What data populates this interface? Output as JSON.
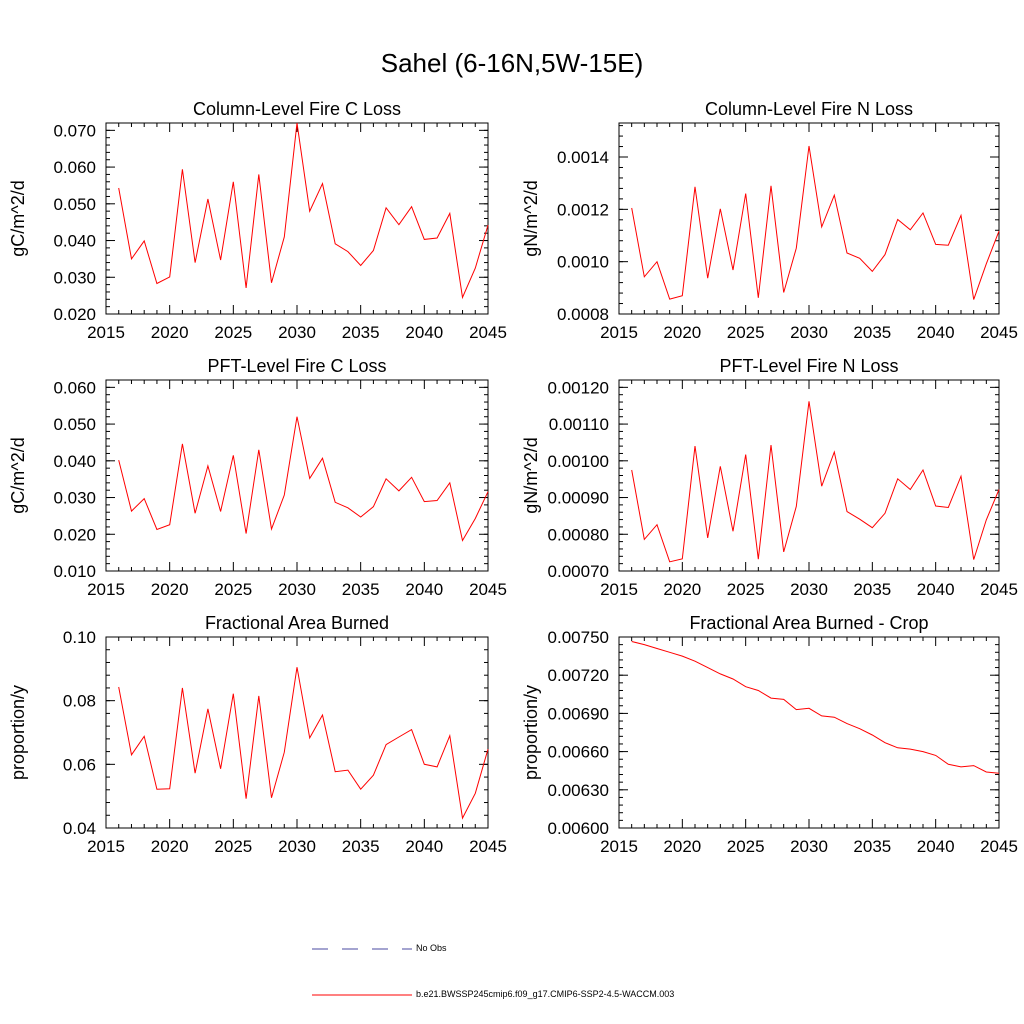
{
  "figure": {
    "title": "Sahel (6-16N,5W-15E)"
  },
  "legend": {
    "entries": [
      {
        "label": "No Obs",
        "color": "#4a4aa0",
        "style": "dashed"
      },
      {
        "label": "b.e21.BWSSP245cmip6.f09_g17.CMIP6-SSP2-4.5-WACCM.003",
        "color": "#ff0000",
        "style": "solid"
      }
    ]
  },
  "chart_data": [
    {
      "type": "line",
      "title": "Column-Level Fire C Loss",
      "xlabel": "",
      "ylabel": "gC/m^2/d",
      "xlim": [
        2015,
        2045
      ],
      "ylim": [
        0.02,
        0.072
      ],
      "xticks": [
        2015,
        2020,
        2025,
        2030,
        2035,
        2040,
        2045
      ],
      "xtick_labels": [
        "2015",
        "2020",
        "2025",
        "2030",
        "2035",
        "2040",
        "2045"
      ],
      "yticks": [
        0.02,
        0.03,
        0.04,
        0.05,
        0.06,
        0.07
      ],
      "ytick_labels": [
        "0.020",
        "0.030",
        "0.040",
        "0.050",
        "0.060",
        "0.070"
      ],
      "x": [
        2016,
        2017,
        2018,
        2019,
        2020,
        2021,
        2022,
        2023,
        2024,
        2025,
        2026,
        2027,
        2028,
        2029,
        2030,
        2031,
        2032,
        2033,
        2034,
        2035,
        2036,
        2037,
        2038,
        2039,
        2040,
        2041,
        2042,
        2043,
        2044,
        2045
      ],
      "series": [
        {
          "name": "b.e21.BWSSP245cmip6.f09_g17.CMIP6-SSP2-4.5-WACCM.003",
          "color": "#ff0000",
          "values": [
            0.0543,
            0.035,
            0.0399,
            0.0283,
            0.0301,
            0.0594,
            0.034,
            0.0513,
            0.0347,
            0.056,
            0.0271,
            0.058,
            0.0285,
            0.041,
            0.072,
            0.048,
            0.0555,
            0.0391,
            0.037,
            0.0332,
            0.0373,
            0.0489,
            0.0443,
            0.0492,
            0.0403,
            0.0407,
            0.0474,
            0.0245,
            0.0325,
            0.0442
          ]
        }
      ]
    },
    {
      "type": "line",
      "title": "Column-Level Fire N Loss",
      "xlabel": "",
      "ylabel": "gN/m^2/d",
      "xlim": [
        2015,
        2045
      ],
      "ylim": [
        0.0008,
        0.00153
      ],
      "xticks": [
        2015,
        2020,
        2025,
        2030,
        2035,
        2040,
        2045
      ],
      "xtick_labels": [
        "2015",
        "2020",
        "2025",
        "2030",
        "2035",
        "2040",
        "2045"
      ],
      "yticks": [
        0.0008,
        0.001,
        0.0012,
        0.0014
      ],
      "ytick_labels": [
        "0.0008",
        "0.0010",
        "0.0012",
        "0.0014"
      ],
      "x": [
        2016,
        2017,
        2018,
        2019,
        2020,
        2021,
        2022,
        2023,
        2024,
        2025,
        2026,
        2027,
        2028,
        2029,
        2030,
        2031,
        2032,
        2033,
        2034,
        2035,
        2036,
        2037,
        2038,
        2039,
        2040,
        2041,
        2042,
        2043,
        2044,
        2045
      ],
      "series": [
        {
          "name": "b.e21.BWSSP245cmip6.f09_g17.CMIP6-SSP2-4.5-WACCM.003",
          "color": "#ff0000",
          "values": [
            0.001205,
            0.000942,
            0.001,
            0.000857,
            0.00087,
            0.001286,
            0.000937,
            0.001202,
            0.000968,
            0.00126,
            0.000862,
            0.00129,
            0.000882,
            0.001052,
            0.001442,
            0.001133,
            0.001254,
            0.001033,
            0.001013,
            0.000963,
            0.001027,
            0.001161,
            0.001122,
            0.001186,
            0.001066,
            0.001063,
            0.001177,
            0.000855,
            0.000992,
            0.001117
          ]
        }
      ]
    },
    {
      "type": "line",
      "title": "PFT-Level Fire C Loss",
      "xlabel": "",
      "ylabel": "gC/m^2/d",
      "xlim": [
        2015,
        2045
      ],
      "ylim": [
        0.01,
        0.062
      ],
      "xticks": [
        2015,
        2020,
        2025,
        2030,
        2035,
        2040,
        2045
      ],
      "xtick_labels": [
        "2015",
        "2020",
        "2025",
        "2030",
        "2035",
        "2040",
        "2045"
      ],
      "yticks": [
        0.01,
        0.02,
        0.03,
        0.04,
        0.05,
        0.06
      ],
      "ytick_labels": [
        "0.010",
        "0.020",
        "0.030",
        "0.040",
        "0.050",
        "0.060"
      ],
      "x": [
        2016,
        2017,
        2018,
        2019,
        2020,
        2021,
        2022,
        2023,
        2024,
        2025,
        2026,
        2027,
        2028,
        2029,
        2030,
        2031,
        2032,
        2033,
        2034,
        2035,
        2036,
        2037,
        2038,
        2039,
        2040,
        2041,
        2042,
        2043,
        2044,
        2045
      ],
      "series": [
        {
          "name": "b.e21.BWSSP245cmip6.f09_g17.CMIP6-SSP2-4.5-WACCM.003",
          "color": "#ff0000",
          "values": [
            0.0402,
            0.0263,
            0.0297,
            0.0213,
            0.0226,
            0.0446,
            0.0257,
            0.0386,
            0.0262,
            0.0415,
            0.0202,
            0.043,
            0.0214,
            0.0307,
            0.052,
            0.0352,
            0.0407,
            0.0287,
            0.0272,
            0.0247,
            0.0275,
            0.0351,
            0.0318,
            0.0355,
            0.0289,
            0.0292,
            0.034,
            0.0183,
            0.0243,
            0.0316
          ]
        }
      ]
    },
    {
      "type": "line",
      "title": "PFT-Level Fire N Loss",
      "xlabel": "",
      "ylabel": "gN/m^2/d",
      "xlim": [
        2015,
        2045
      ],
      "ylim": [
        0.0007,
        0.00122
      ],
      "xticks": [
        2015,
        2020,
        2025,
        2030,
        2035,
        2040,
        2045
      ],
      "xtick_labels": [
        "2015",
        "2020",
        "2025",
        "2030",
        "2035",
        "2040",
        "2045"
      ],
      "yticks": [
        0.0007,
        0.0008,
        0.0009,
        0.001,
        0.0011,
        0.0012
      ],
      "ytick_labels": [
        "0.00070",
        "0.00080",
        "0.00090",
        "0.00100",
        "0.00110",
        "0.00120"
      ],
      "x": [
        2016,
        2017,
        2018,
        2019,
        2020,
        2021,
        2022,
        2023,
        2024,
        2025,
        2026,
        2027,
        2028,
        2029,
        2030,
        2031,
        2032,
        2033,
        2034,
        2035,
        2036,
        2037,
        2038,
        2039,
        2040,
        2041,
        2042,
        2043,
        2044,
        2045
      ],
      "series": [
        {
          "name": "b.e21.BWSSP245cmip6.f09_g17.CMIP6-SSP2-4.5-WACCM.003",
          "color": "#ff0000",
          "values": [
            0.000975,
            0.000786,
            0.000826,
            0.000725,
            0.000733,
            0.00104,
            0.00079,
            0.000985,
            0.000808,
            0.001017,
            0.000732,
            0.001043,
            0.000752,
            0.000876,
            0.001162,
            0.000931,
            0.001024,
            0.000862,
            0.000841,
            0.000818,
            0.000857,
            0.000951,
            0.000922,
            0.000975,
            0.000877,
            0.000873,
            0.000958,
            0.000731,
            0.000839,
            0.000922
          ]
        }
      ]
    },
    {
      "type": "line",
      "title": "Fractional Area Burned",
      "xlabel": "",
      "ylabel": "proportion/y",
      "xlim": [
        2015,
        2045
      ],
      "ylim": [
        0.04,
        0.1
      ],
      "xticks": [
        2015,
        2020,
        2025,
        2030,
        2035,
        2040,
        2045
      ],
      "xtick_labels": [
        "2015",
        "2020",
        "2025",
        "2030",
        "2035",
        "2040",
        "2045"
      ],
      "yticks": [
        0.04,
        0.06,
        0.08,
        0.1
      ],
      "ytick_labels": [
        "0.04",
        "0.06",
        "0.08",
        "0.10"
      ],
      "x": [
        2016,
        2017,
        2018,
        2019,
        2020,
        2021,
        2022,
        2023,
        2024,
        2025,
        2026,
        2027,
        2028,
        2029,
        2030,
        2031,
        2032,
        2033,
        2034,
        2035,
        2036,
        2037,
        2038,
        2039,
        2040,
        2041,
        2042,
        2043,
        2044,
        2045
      ],
      "series": [
        {
          "name": "b.e21.BWSSP245cmip6.f09_g17.CMIP6-SSP2-4.5-WACCM.003",
          "color": "#ff0000",
          "values": [
            0.0843,
            0.063,
            0.0688,
            0.0522,
            0.0523,
            0.084,
            0.0572,
            0.0774,
            0.0586,
            0.0822,
            0.0492,
            0.0815,
            0.0495,
            0.0638,
            0.0905,
            0.0683,
            0.0755,
            0.0577,
            0.0582,
            0.0522,
            0.0566,
            0.0662,
            0.0686,
            0.0709,
            0.06,
            0.0592,
            0.069,
            0.0431,
            0.0509,
            0.0648
          ]
        }
      ]
    },
    {
      "type": "line",
      "title": "Fractional Area Burned - Crop",
      "xlabel": "",
      "ylabel": "proportion/y",
      "xlim": [
        2015,
        2045
      ],
      "ylim": [
        0.006,
        0.0075
      ],
      "xticks": [
        2015,
        2020,
        2025,
        2030,
        2035,
        2040,
        2045
      ],
      "xtick_labels": [
        "2015",
        "2020",
        "2025",
        "2030",
        "2035",
        "2040",
        "2045"
      ],
      "yticks": [
        0.006,
        0.0063,
        0.0066,
        0.0069,
        0.0072,
        0.0075
      ],
      "ytick_labels": [
        "0.00600",
        "0.00630",
        "0.00660",
        "0.00690",
        "0.00720",
        "0.00750"
      ],
      "x": [
        2016,
        2017,
        2018,
        2019,
        2020,
        2021,
        2022,
        2023,
        2024,
        2025,
        2026,
        2027,
        2028,
        2029,
        2030,
        2031,
        2032,
        2033,
        2034,
        2035,
        2036,
        2037,
        2038,
        2039,
        2040,
        2041,
        2042,
        2043,
        2044,
        2045
      ],
      "series": [
        {
          "name": "b.e21.BWSSP245cmip6.f09_g17.CMIP6-SSP2-4.5-WACCM.003",
          "color": "#ff0000",
          "values": [
            0.007465,
            0.00744,
            0.00741,
            0.00738,
            0.00735,
            0.00731,
            0.00726,
            0.00721,
            0.00717,
            0.00711,
            0.00708,
            0.00702,
            0.00701,
            0.00693,
            0.00694,
            0.00688,
            0.00687,
            0.00682,
            0.00678,
            0.00673,
            0.00667,
            0.00663,
            0.00662,
            0.0066,
            0.00657,
            0.0065,
            0.00648,
            0.00649,
            0.00644,
            0.00643
          ]
        }
      ]
    }
  ]
}
